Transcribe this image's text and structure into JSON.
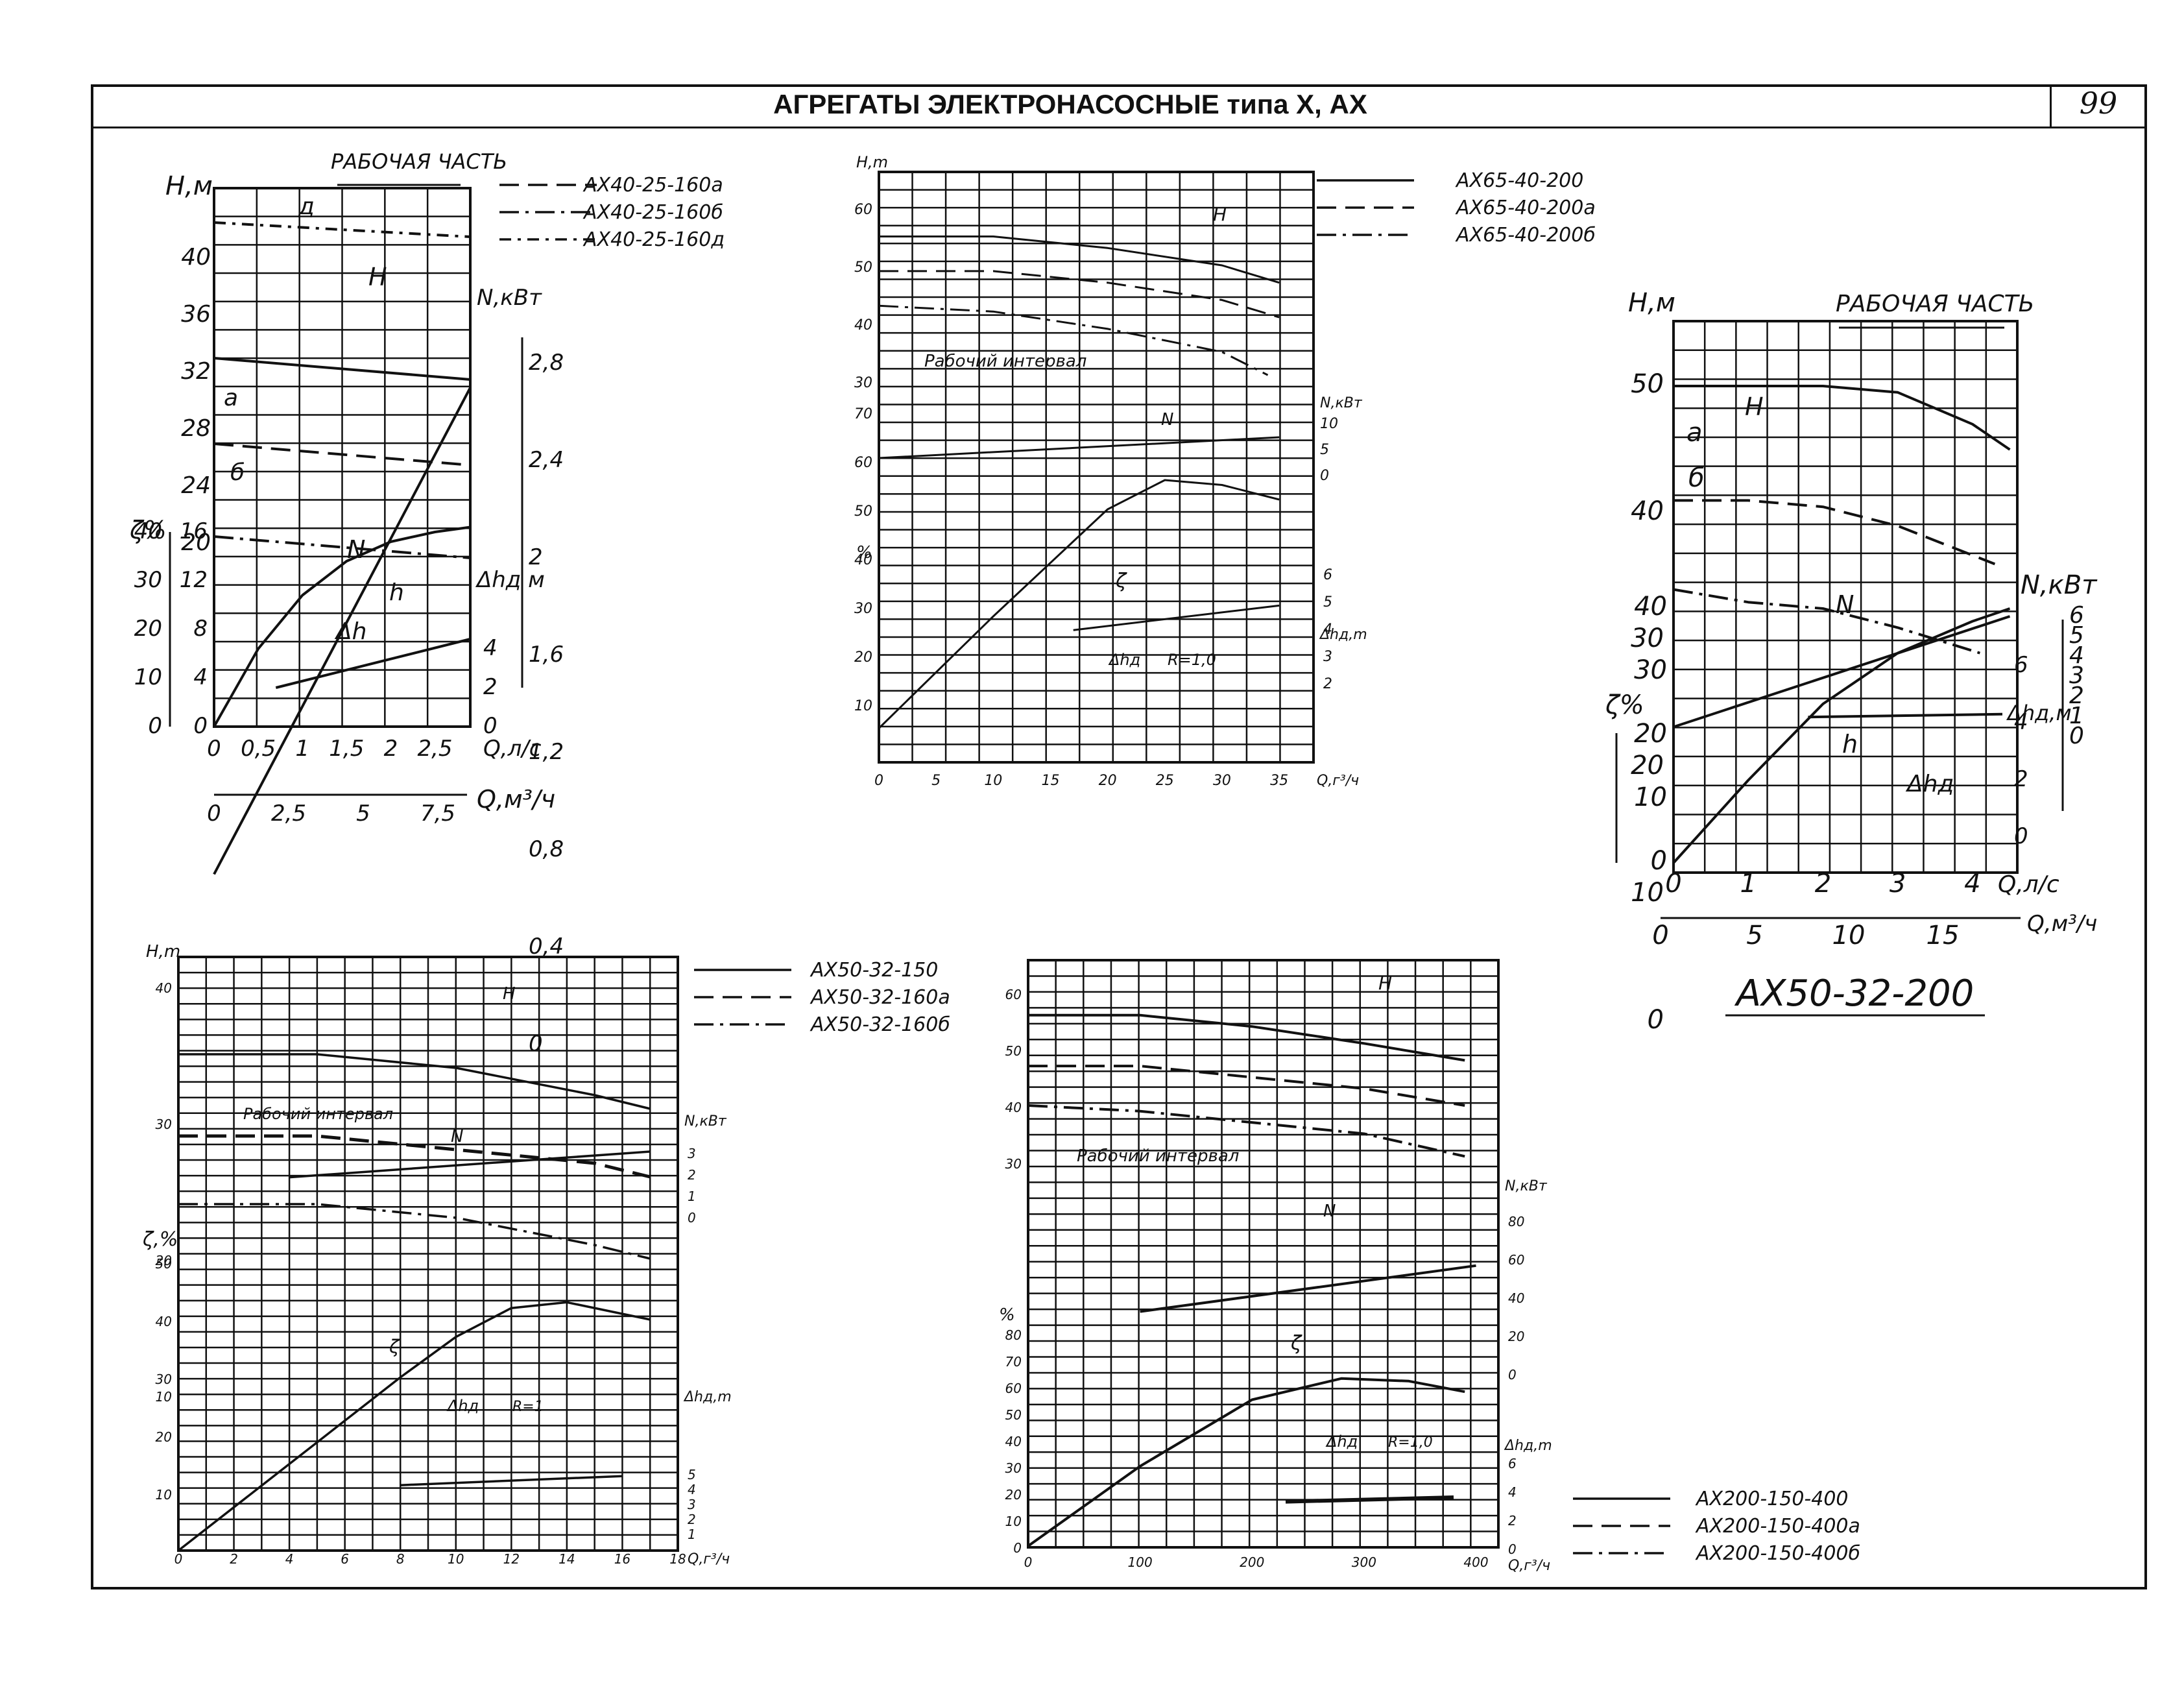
{
  "header": {
    "title": "АГРЕГАТЫ ЭЛЕКТРОНАСОСНЫЕ типа Х, АХ",
    "page_number": "99"
  },
  "chart_data": [
    {
      "id": "ax40",
      "type": "line",
      "legend": [
        {
          "label": "АХ40-25-160а",
          "style": "dashed"
        },
        {
          "label": "АХ40-25-160б",
          "style": "dashdot"
        },
        {
          "label": "АХ40-25-160д",
          "style": "dashdot-cross"
        }
      ],
      "heading": "РАБОЧАЯ ЧАСТЬ",
      "labels": {
        "H_axis": "H,м",
        "N_axis": "N,кВт",
        "eta_axis": "ζ%",
        "dh_axis": "Δhд м",
        "x_axis": "Q,л/с",
        "x2_axis": "Q,м³/ч",
        "curve_H": "H",
        "curve_N": "N",
        "curve_dh": "Δh",
        "curve_eta": "h",
        "mark_a": "а",
        "mark_b": "б",
        "mark_d": "д"
      },
      "x_ticks": [
        "0",
        "0,5",
        "1",
        "1,5",
        "2",
        "2,5"
      ],
      "x2_ticks": [
        "0",
        "2,5",
        "5",
        "7,5"
      ],
      "H_ticks": [
        "20",
        "24",
        "28",
        "32",
        "36",
        "40"
      ],
      "N_ticks": [
        "2,8",
        "2,4",
        "2",
        "1,6",
        "1,2",
        "0,8",
        "0,4",
        "0"
      ],
      "eta_ticks": [
        "40",
        "30",
        "20",
        "10",
        "0"
      ],
      "low_ticks": [
        "16",
        "12",
        "8",
        "4",
        "0"
      ],
      "dh_ticks": [
        "4",
        "2",
        "0"
      ],
      "series": [
        {
          "name": "д",
          "x": [
            0,
            2.9
          ],
          "y": [
            42.5,
            41.5
          ]
        },
        {
          "name": "H",
          "x": [
            0,
            2.9
          ],
          "y": [
            33,
            31.5
          ]
        },
        {
          "name": "а",
          "x": [
            0,
            2.9
          ],
          "y": [
            27,
            25.5
          ]
        },
        {
          "name": "б",
          "x": [
            0,
            2.9
          ],
          "y": [
            20.5,
            19
          ]
        },
        {
          "name": "N",
          "x": [
            0,
            2.9
          ],
          "y": [
            0.7,
            2.7
          ]
        },
        {
          "name": "ζ",
          "x": [
            0,
            0.5,
            1,
            1.5,
            2,
            2.5,
            2.9
          ],
          "y": [
            0,
            16,
            27,
            34,
            38,
            40,
            41
          ]
        },
        {
          "name": "Δh",
          "x": [
            0.7,
            2.9
          ],
          "y": [
            2,
            4.5
          ]
        }
      ]
    },
    {
      "id": "ax65",
      "type": "line",
      "legend": [
        {
          "label": "АХ65-40-200",
          "style": "solid"
        },
        {
          "label": "АХ65-40-200а",
          "style": "dashed"
        },
        {
          "label": "АХ65-40-200б",
          "style": "dashdot"
        }
      ],
      "labels": {
        "H_axis": "H,m",
        "N_axis": "N,кВт",
        "eta_axis": "%",
        "dh_axis": "Δhд,m",
        "x_axis": "Q,г³/ч",
        "curve_H": "H",
        "curve_N": "N",
        "curve_eta": "ζ",
        "curve_dh": "Δhд",
        "R": "R=1,0",
        "interval": "Рабочий интервал"
      },
      "x_ticks": [
        "0",
        "5",
        "10",
        "15",
        "20",
        "25",
        "30",
        "35"
      ],
      "H_ticks": [
        "60",
        "50",
        "40",
        "30"
      ],
      "N_ticks": [
        "10",
        "5",
        "0"
      ],
      "eta_ticks": [
        "70",
        "60",
        "50",
        "40",
        "30",
        "20",
        "10"
      ],
      "dh_ticks": [
        "6",
        "5",
        "4",
        "3",
        "2"
      ],
      "series": [
        {
          "name": "АХ65-40-200",
          "x": [
            0,
            10,
            20,
            30,
            35
          ],
          "y": [
            55,
            55,
            53,
            50,
            47
          ]
        },
        {
          "name": "АХ65-40-200а",
          "x": [
            0,
            10,
            20,
            30,
            35
          ],
          "y": [
            49,
            49,
            47,
            44,
            41
          ]
        },
        {
          "name": "АХ65-40-200б",
          "x": [
            0,
            10,
            20,
            30,
            34
          ],
          "y": [
            43,
            42,
            39,
            35,
            31
          ]
        },
        {
          "name": "N",
          "x": [
            0,
            35
          ],
          "y": [
            3,
            7
          ]
        },
        {
          "name": "ζ",
          "x": [
            0,
            10,
            20,
            25,
            30,
            35
          ],
          "y": [
            5,
            28,
            50,
            56,
            55,
            52
          ]
        },
        {
          "name": "Δhд",
          "x": [
            17,
            35
          ],
          "y": [
            3.9,
            4.8
          ]
        }
      ]
    },
    {
      "id": "ax50200",
      "type": "line",
      "caption": "АХ50-32-200",
      "heading": "РАБОЧАЯ ЧАСТЬ",
      "labels": {
        "H_axis": "H,м",
        "N_axis": "N,кВт",
        "eta_axis": "ζ%",
        "dh_axis": "Δhд,м",
        "x_axis": "Q,л/с",
        "x2_axis": "Q,м³/ч",
        "curve_H": "H",
        "curve_N": "N",
        "curve_eta": "h",
        "curve_dh": "Δhд",
        "mark_a": "а",
        "mark_b": "б"
      },
      "x_ticks": [
        "0",
        "1",
        "2",
        "3",
        "4"
      ],
      "x2_ticks": [
        "0",
        "5",
        "10",
        "15"
      ],
      "H_ticks": [
        "50",
        "40",
        "30",
        "20",
        "10",
        "0"
      ],
      "N_ticks": [
        "6",
        "5",
        "4",
        "3",
        "2",
        "1",
        "0"
      ],
      "eta_ticks": [
        "40",
        "30",
        "20",
        "10",
        "0"
      ],
      "dh_ticks": [
        "6",
        "4",
        "2",
        "0"
      ],
      "series": [
        {
          "name": "H",
          "x": [
            0,
            1,
            2,
            3,
            4,
            4.5
          ],
          "y": [
            50,
            50,
            50,
            49.5,
            47,
            45
          ]
        },
        {
          "name": "а",
          "x": [
            0,
            1,
            2,
            3,
            4.3
          ],
          "y": [
            41,
            41,
            40.5,
            39,
            36
          ]
        },
        {
          "name": "б",
          "x": [
            0,
            1,
            2,
            3,
            4.1
          ],
          "y": [
            34,
            33,
            32.5,
            31,
            29
          ]
        },
        {
          "name": "N",
          "x": [
            0,
            4.5
          ],
          "y": [
            0.5,
            6
          ]
        },
        {
          "name": "ζ",
          "x": [
            0,
            1,
            2,
            3,
            4,
            4.5
          ],
          "y": [
            0,
            13,
            25,
            33,
            38,
            40
          ]
        },
        {
          "name": "Δhд",
          "x": [
            1.8,
            4.4
          ],
          "y": [
            4.2,
            4.3
          ]
        }
      ]
    },
    {
      "id": "ax50150",
      "type": "line",
      "legend": [
        {
          "label": "АХ50-32-150",
          "style": "solid"
        },
        {
          "label": "АХ50-32-160а",
          "style": "dashed"
        },
        {
          "label": "АХ50-32-160б",
          "style": "dashdot"
        }
      ],
      "labels": {
        "H_axis": "H,m",
        "N_axis": "N,кВт",
        "eta_axis": "ζ,%",
        "dh_axis": "Δhд,m",
        "x_axis": "Q,г³/ч",
        "curve_H": "H",
        "curve_N": "N",
        "curve_eta": "ζ",
        "curve_dh": "Δhд",
        "R": "R=1",
        "interval": "Рабочий интервал"
      },
      "x_ticks": [
        "0",
        "2",
        "4",
        "6",
        "8",
        "10",
        "12",
        "14",
        "16",
        "18"
      ],
      "H_ticks": [
        "40",
        "30",
        "20",
        "10"
      ],
      "N_ticks": [
        "3",
        "2",
        "1",
        "0"
      ],
      "eta_ticks": [
        "50",
        "40",
        "30",
        "20",
        "10"
      ],
      "dh_ticks": [
        "5",
        "4",
        "3",
        "2",
        "1"
      ],
      "series": [
        {
          "name": "АХ50-32-150",
          "x": [
            0,
            5,
            10,
            15,
            17
          ],
          "y": [
            35,
            35,
            34,
            32,
            31
          ]
        },
        {
          "name": "АХ50-32-160а",
          "x": [
            0,
            5,
            10,
            15,
            17
          ],
          "y": [
            29,
            29,
            28,
            27,
            26
          ]
        },
        {
          "name": "АХ50-32-160б",
          "x": [
            0,
            5,
            10,
            15,
            17
          ],
          "y": [
            24,
            24,
            23,
            21,
            20
          ]
        },
        {
          "name": "N",
          "x": [
            4,
            17
          ],
          "y": [
            1.8,
            3
          ]
        },
        {
          "name": "ζ",
          "x": [
            0,
            4,
            8,
            10,
            12,
            14,
            16,
            17
          ],
          "y": [
            0,
            15,
            30,
            37,
            42,
            43,
            41,
            40
          ]
        },
        {
          "name": "Δhд",
          "x": [
            8,
            16
          ],
          "y": [
            3.6,
            4.1
          ]
        }
      ]
    },
    {
      "id": "ax200",
      "type": "line",
      "legend": [
        {
          "label": "АХ200-150-400",
          "style": "solid"
        },
        {
          "label": "АХ200-150-400а",
          "style": "dashed"
        },
        {
          "label": "АХ200-150-400б",
          "style": "dashdot"
        }
      ],
      "labels": {
        "H_axis": "",
        "N_axis": "N,кВт",
        "eta_axis": "%",
        "dh_axis": "Δhд,m",
        "x_axis": "Q,г³/ч",
        "curve_H": "H",
        "curve_N": "N",
        "curve_eta": "ζ",
        "curve_dh": "Δhд",
        "R": "R=1,0",
        "interval": "Рабочий интервал"
      },
      "x_ticks": [
        "0",
        "100",
        "200",
        "300",
        "400"
      ],
      "H_ticks": [
        "60",
        "50",
        "40",
        "30"
      ],
      "N_ticks": [
        "80",
        "60",
        "40",
        "20",
        "0"
      ],
      "eta_ticks": [
        "80",
        "70",
        "60",
        "50",
        "40",
        "30",
        "20",
        "10",
        "0"
      ],
      "dh_ticks": [
        "6",
        "4",
        "2",
        "0"
      ],
      "series": [
        {
          "name": "АХ200-150-400",
          "x": [
            0,
            100,
            200,
            300,
            390
          ],
          "y": [
            56,
            56,
            54,
            51,
            48
          ]
        },
        {
          "name": "АХ200-150-400а",
          "x": [
            0,
            100,
            200,
            300,
            390
          ],
          "y": [
            47,
            47,
            45,
            43,
            40
          ]
        },
        {
          "name": "АХ200-150-400б",
          "x": [
            0,
            100,
            200,
            300,
            390
          ],
          "y": [
            40,
            39,
            37,
            35,
            31
          ]
        },
        {
          "name": "N",
          "x": [
            100,
            400
          ],
          "y": [
            32,
            56
          ]
        },
        {
          "name": "ζ",
          "x": [
            0,
            100,
            200,
            280,
            340,
            390
          ],
          "y": [
            0,
            30,
            55,
            63,
            62,
            58
          ]
        },
        {
          "name": "Δhд",
          "x": [
            230,
            380
          ],
          "y": [
            3.2,
            3.5
          ]
        }
      ]
    }
  ]
}
